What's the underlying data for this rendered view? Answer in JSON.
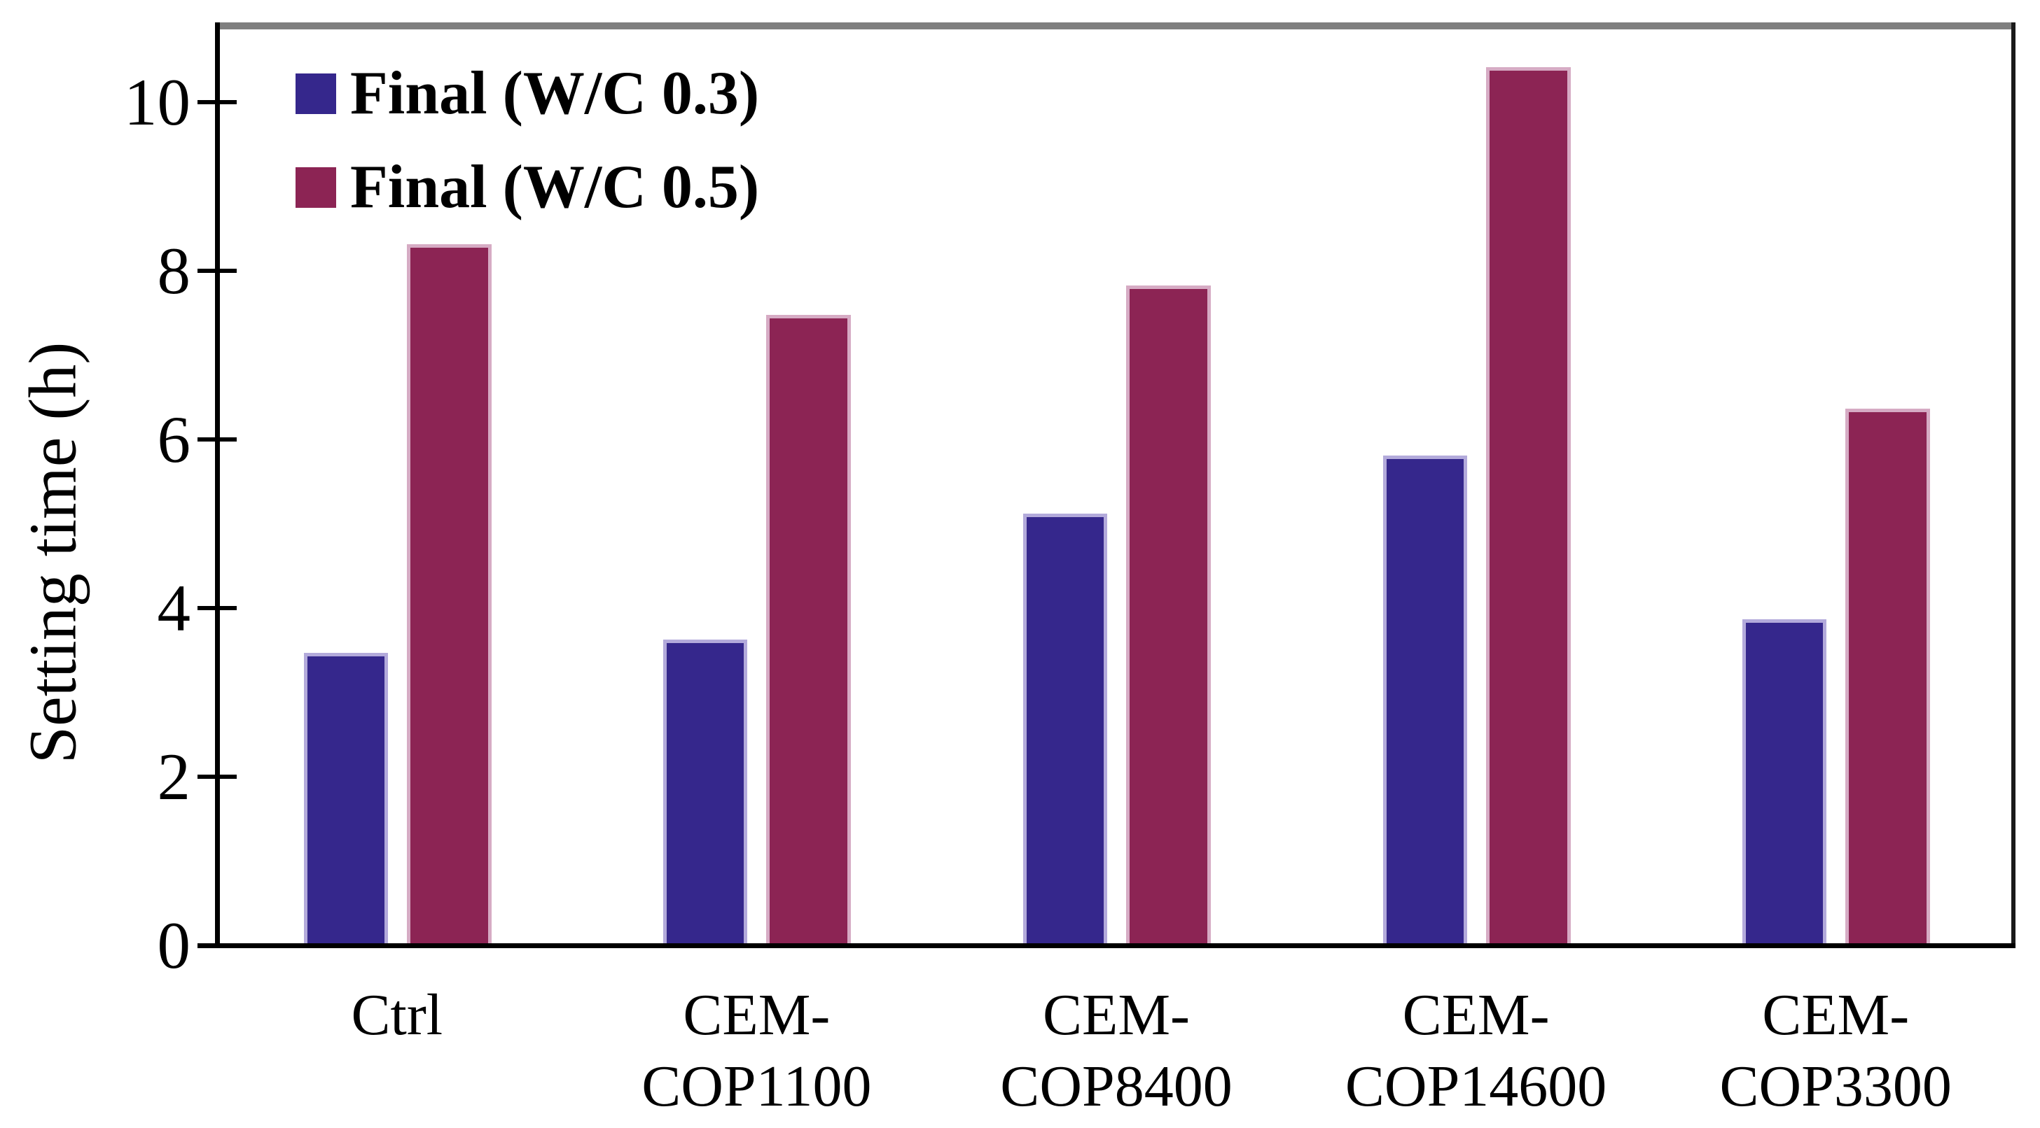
{
  "chart_data": {
    "type": "bar",
    "title": "",
    "xlabel": "",
    "ylabel": "Setting time (h)",
    "categories": [
      "Ctrl",
      "CEM-\nCOP1100",
      "CEM-\nCOP8400",
      "CEM-\nCOP14600",
      "CEM-\nCOP3300"
    ],
    "series": [
      {
        "name": "Final (W/C 0.3)",
        "color": "#35278C",
        "edge_color": "#B3AADB",
        "values": [
          3.47,
          3.63,
          5.12,
          5.81,
          3.87
        ]
      },
      {
        "name": "Final (W/C 0.5)",
        "color": "#8C2454",
        "edge_color": "#D6ABC4",
        "values": [
          8.32,
          7.48,
          7.83,
          10.42,
          6.37
        ]
      }
    ],
    "ylim": [
      0,
      10.95
    ],
    "yticks": [
      0,
      2,
      4,
      6,
      8,
      10
    ],
    "grid": false,
    "legend_position": "top-left"
  },
  "colors": {
    "background": "#FFFFFF",
    "axis": "#000000",
    "plot_top_border": "#7F7F7F",
    "plot_right_border": "#1A1A1A"
  }
}
